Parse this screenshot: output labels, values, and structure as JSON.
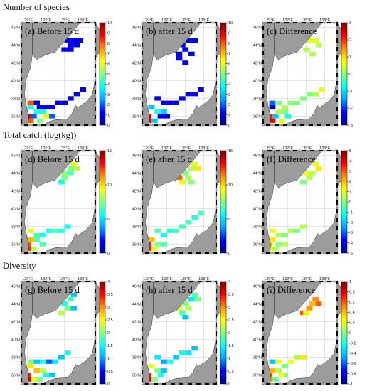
{
  "sections": [
    {
      "title": "Number of species",
      "panels": [
        {
          "label": "(a) Before 15 d",
          "colorbar_ticks": [
            "10",
            "9",
            "8",
            "7",
            "6",
            "5",
            "4",
            "3",
            "2",
            "1",
            "0"
          ]
        },
        {
          "label": "(b) after 15 d",
          "colorbar_ticks": [
            "10",
            "9",
            "8",
            "7",
            "6",
            "5",
            "4",
            "3",
            "2",
            "1",
            "0"
          ]
        },
        {
          "label": "(c) Difference",
          "colorbar_ticks": [
            "3",
            "2",
            "1",
            "0",
            "-1",
            "-2",
            "-3"
          ]
        }
      ]
    },
    {
      "title": "Total catch (log(kg))",
      "panels": [
        {
          "label": "(d) Before 15 d",
          "colorbar_ticks": [
            "15",
            "10",
            "5",
            "0"
          ]
        },
        {
          "label": "(e) after 15 d",
          "colorbar_ticks": [
            "15",
            "10",
            "5",
            "0"
          ]
        },
        {
          "label": "(f) Difference",
          "colorbar_ticks": [
            "5",
            "4",
            "3",
            "2",
            "1",
            "0",
            "-1",
            "-2",
            "-3",
            "-4",
            "-5"
          ]
        }
      ]
    },
    {
      "title": "Diversity",
      "panels": [
        {
          "label": "(g) Before 15 d",
          "colorbar_ticks": [
            "4",
            "3.5",
            "3",
            "2.5",
            "2",
            "1.5",
            "1",
            "0.5",
            "0"
          ]
        },
        {
          "label": "(h) after 15 d",
          "colorbar_ticks": [
            "4",
            "3.5",
            "3",
            "2.5",
            "2",
            "1.5",
            "1",
            "0.5",
            "0"
          ]
        },
        {
          "label": "(i) Difference",
          "colorbar_ticks": [
            "1",
            "0.8",
            "0.6",
            "0.4",
            "0.2",
            "0",
            "-0.2",
            "-0.4",
            "-0.6",
            "-0.8",
            "-1"
          ]
        }
      ]
    }
  ],
  "map_axes": {
    "x_ticks": [
      "129°E",
      "132°E",
      "135°E",
      "138°E"
    ],
    "y_ticks": [
      "46°N",
      "44°N",
      "42°N",
      "40°N",
      "38°N",
      "36°N"
    ]
  },
  "colors": {
    "land": "#9c9c9c",
    "sea": "#ffffff",
    "coast": "#333333",
    "colormap": [
      "#00008f",
      "#0000ff",
      "#00a0ff",
      "#00ffff",
      "#80ff80",
      "#ffff00",
      "#ff9000",
      "#ff0000",
      "#800000"
    ]
  },
  "grid_data": {
    "num_species_before": [
      [
        135.5,
        44.5,
        0.1
      ],
      [
        136.5,
        44.5,
        0.1
      ],
      [
        137.5,
        44.5,
        0.1
      ],
      [
        136,
        44,
        0.1
      ],
      [
        137,
        44,
        0.1
      ],
      [
        135,
        43.5,
        0.1
      ],
      [
        136,
        43.5,
        0.1
      ],
      [
        129.5,
        37.5,
        0.8
      ],
      [
        130.5,
        37.5,
        0.1
      ],
      [
        131,
        37,
        0.1
      ],
      [
        132,
        37,
        0.1
      ],
      [
        133,
        37,
        0.1
      ],
      [
        134,
        37.5,
        0.1
      ],
      [
        135,
        37.5,
        0.1
      ],
      [
        136,
        38,
        0.1
      ],
      [
        137,
        38.5,
        0.1
      ],
      [
        138,
        39,
        0.1
      ],
      [
        129.5,
        37,
        0.4
      ],
      [
        130.5,
        36.5,
        0.4
      ],
      [
        131.5,
        36.5,
        0.4
      ],
      [
        130,
        36,
        0.2
      ],
      [
        131,
        35.5,
        0.5
      ],
      [
        132,
        36,
        0.6
      ],
      [
        133,
        36,
        0.2
      ],
      [
        129,
        36,
        0.9
      ],
      [
        129,
        35.5,
        0.9
      ],
      [
        129.5,
        35.5,
        0.8
      ]
    ],
    "num_species_after": [
      [
        134.5,
        44,
        0.1
      ],
      [
        135.5,
        44.5,
        0.1
      ],
      [
        136.5,
        44.5,
        0.1
      ],
      [
        135,
        43.5,
        0.1
      ],
      [
        136,
        43,
        0.1
      ],
      [
        134,
        43,
        0.1
      ],
      [
        134,
        42.5,
        0.1
      ],
      [
        135,
        42,
        0.1
      ],
      [
        130.5,
        38,
        0.1
      ],
      [
        131.5,
        37.5,
        0.1
      ],
      [
        132.5,
        37.5,
        0.1
      ],
      [
        133.5,
        37.5,
        0.1
      ],
      [
        134.5,
        38,
        0.1
      ],
      [
        135.5,
        38.5,
        0.1
      ],
      [
        136.5,
        38.5,
        0.1
      ],
      [
        137.5,
        39,
        0.1
      ],
      [
        129.5,
        37,
        0.3
      ],
      [
        130.5,
        36.5,
        0.4
      ],
      [
        131.5,
        36.5,
        0.3
      ],
      [
        129,
        36,
        0.9
      ],
      [
        129,
        35.5,
        0.9
      ],
      [
        130,
        35.5,
        0.3
      ],
      [
        131,
        36,
        0.1
      ],
      [
        132,
        36,
        0.1
      ]
    ],
    "num_species_diff": [
      [
        135.5,
        44.5,
        0.6
      ],
      [
        136.5,
        44.5,
        0.6
      ],
      [
        135,
        43.5,
        0.55
      ],
      [
        136,
        43,
        0.55
      ],
      [
        137,
        44,
        0.55
      ],
      [
        129.5,
        37.5,
        0.2
      ],
      [
        130.5,
        37.5,
        0.5
      ],
      [
        131.5,
        37,
        0.55
      ],
      [
        132.5,
        37.5,
        0.5
      ],
      [
        133.5,
        37.5,
        0.5
      ],
      [
        134.5,
        38,
        0.5
      ],
      [
        135.5,
        38.5,
        0.5
      ],
      [
        136.5,
        38.5,
        0.55
      ],
      [
        137.5,
        39,
        0.6
      ],
      [
        129.5,
        37,
        0.05
      ],
      [
        130.5,
        36.5,
        0.55
      ],
      [
        131.5,
        36.5,
        0.5
      ],
      [
        129,
        36,
        0.85
      ],
      [
        129.5,
        35.5,
        0.9
      ],
      [
        130,
        36,
        0.3
      ],
      [
        131,
        35.5,
        0.6
      ],
      [
        132,
        36,
        0.4
      ]
    ],
    "catch_before": [
      [
        136.5,
        45,
        0.6
      ],
      [
        136,
        44.5,
        0.5
      ],
      [
        137,
        44.5,
        0.55
      ],
      [
        135,
        44,
        0.5
      ],
      [
        136,
        44,
        0.45
      ],
      [
        135,
        43.5,
        0.5
      ],
      [
        134.5,
        43,
        0.4
      ],
      [
        129.5,
        37.5,
        0.6
      ],
      [
        130.5,
        37,
        0.45
      ],
      [
        131.5,
        37,
        0.4
      ],
      [
        132.5,
        37.5,
        0.4
      ],
      [
        133.5,
        37.5,
        0.45
      ],
      [
        134.5,
        37.5,
        0.4
      ],
      [
        135.5,
        38,
        0.4
      ],
      [
        129.5,
        36.5,
        0.7
      ],
      [
        130.5,
        36.5,
        0.45
      ],
      [
        131.5,
        36,
        0.45
      ],
      [
        129,
        36,
        0.8
      ],
      [
        129,
        35.5,
        0.85
      ],
      [
        130,
        35.5,
        0.55
      ]
    ],
    "catch_after": [
      [
        136.5,
        45,
        0.6
      ],
      [
        137,
        44.5,
        0.65
      ],
      [
        136,
        44.5,
        0.55
      ],
      [
        135,
        44,
        0.5
      ],
      [
        135.5,
        43.5,
        0.55
      ],
      [
        134.5,
        43,
        0.6
      ],
      [
        134,
        43.5,
        0.8
      ],
      [
        136,
        43,
        0.5
      ],
      [
        130.5,
        37.5,
        0.45
      ],
      [
        131.5,
        37,
        0.4
      ],
      [
        132.5,
        37.5,
        0.4
      ],
      [
        133.5,
        37.5,
        0.45
      ],
      [
        134.5,
        38,
        0.45
      ],
      [
        135.5,
        38.5,
        0.45
      ],
      [
        136.5,
        39,
        0.4
      ],
      [
        137.5,
        39.5,
        0.45
      ],
      [
        129.5,
        36.5,
        0.7
      ],
      [
        130.5,
        36,
        0.5
      ],
      [
        131.5,
        36,
        0.45
      ],
      [
        129,
        36,
        0.85
      ],
      [
        129,
        35.5,
        0.85
      ],
      [
        130,
        35.5,
        0.6
      ]
    ],
    "catch_diff": [
      [
        136.5,
        45,
        0.6
      ],
      [
        137,
        44.5,
        0.65
      ],
      [
        136,
        44,
        0.55
      ],
      [
        135,
        44,
        0.6
      ],
      [
        135.5,
        43.5,
        0.55
      ],
      [
        134.5,
        43,
        0.5
      ],
      [
        129.5,
        37.5,
        0.6
      ],
      [
        130.5,
        37,
        0.55
      ],
      [
        131.5,
        37,
        0.5
      ],
      [
        132.5,
        37.5,
        0.55
      ],
      [
        133.5,
        37.5,
        0.5
      ],
      [
        134.5,
        38,
        0.55
      ],
      [
        129.5,
        36.5,
        0.65
      ],
      [
        130.5,
        36,
        0.5
      ],
      [
        131.5,
        36,
        0.55
      ],
      [
        129,
        36,
        0.7
      ],
      [
        129,
        35.5,
        0.6
      ],
      [
        130,
        35.5,
        0.55
      ]
    ],
    "diversity_before": [
      [
        136.5,
        45,
        0.3
      ],
      [
        136,
        44.5,
        0.45
      ],
      [
        135,
        44,
        0.4
      ],
      [
        135.5,
        43.5,
        0.5
      ],
      [
        134.5,
        43,
        0.55
      ],
      [
        136.5,
        43.5,
        0.3
      ],
      [
        129.5,
        37.5,
        0.5
      ],
      [
        130.5,
        37.5,
        0.3
      ],
      [
        131.5,
        37.5,
        0.4
      ],
      [
        132.5,
        37.5,
        0.2
      ],
      [
        133.5,
        37.5,
        0.35
      ],
      [
        134.5,
        38,
        0.3
      ],
      [
        135.5,
        38.5,
        0.4
      ],
      [
        129.5,
        37,
        0.65
      ],
      [
        130.5,
        36.5,
        0.7
      ],
      [
        131.5,
        36.5,
        0.55
      ],
      [
        132,
        36,
        0.4
      ],
      [
        133,
        36,
        0.3
      ],
      [
        129,
        36,
        0.85
      ],
      [
        129,
        35.5,
        0.9
      ],
      [
        130,
        35.5,
        0.6
      ],
      [
        131,
        35.5,
        0.5
      ]
    ],
    "diversity_after": [
      [
        136.5,
        45,
        0.45
      ],
      [
        137,
        44.5,
        0.5
      ],
      [
        136,
        44.5,
        0.35
      ],
      [
        135,
        44,
        0.5
      ],
      [
        135.5,
        43.5,
        0.55
      ],
      [
        134.5,
        43,
        0.45
      ],
      [
        134,
        43.5,
        0.6
      ],
      [
        135,
        42.5,
        0.3
      ],
      [
        130.5,
        38,
        0.35
      ],
      [
        131.5,
        37.5,
        0.25
      ],
      [
        132.5,
        37.5,
        0.4
      ],
      [
        133.5,
        38,
        0.3
      ],
      [
        134.5,
        38.5,
        0.4
      ],
      [
        135.5,
        38.5,
        0.35
      ],
      [
        136.5,
        39,
        0.3
      ],
      [
        129.5,
        37,
        0.6
      ],
      [
        130.5,
        36.5,
        0.5
      ],
      [
        131.5,
        36.5,
        0.3
      ],
      [
        129,
        36,
        0.85
      ],
      [
        129,
        35.5,
        0.9
      ],
      [
        130,
        35.5,
        0.5
      ],
      [
        131,
        36,
        0.4
      ]
    ],
    "diversity_diff": [
      [
        136.5,
        44.5,
        0.75
      ],
      [
        137,
        44,
        0.8
      ],
      [
        136,
        44,
        0.7
      ],
      [
        135.5,
        43.5,
        0.75
      ],
      [
        134.5,
        43,
        0.8
      ],
      [
        135,
        43,
        0.6
      ],
      [
        129.5,
        37.5,
        0.3
      ],
      [
        130.5,
        37.5,
        0.6
      ],
      [
        131.5,
        37,
        0.5
      ],
      [
        132.5,
        37.5,
        0.6
      ],
      [
        133.5,
        38,
        0.55
      ],
      [
        134.5,
        38,
        0.65
      ],
      [
        129.5,
        36.5,
        0.7
      ],
      [
        130.5,
        36.5,
        0.55
      ],
      [
        131.5,
        36,
        0.5
      ],
      [
        129,
        36,
        0.8
      ],
      [
        129,
        35.5,
        0.75
      ],
      [
        130,
        35.5,
        0.45
      ],
      [
        131,
        36,
        0.6
      ]
    ]
  }
}
